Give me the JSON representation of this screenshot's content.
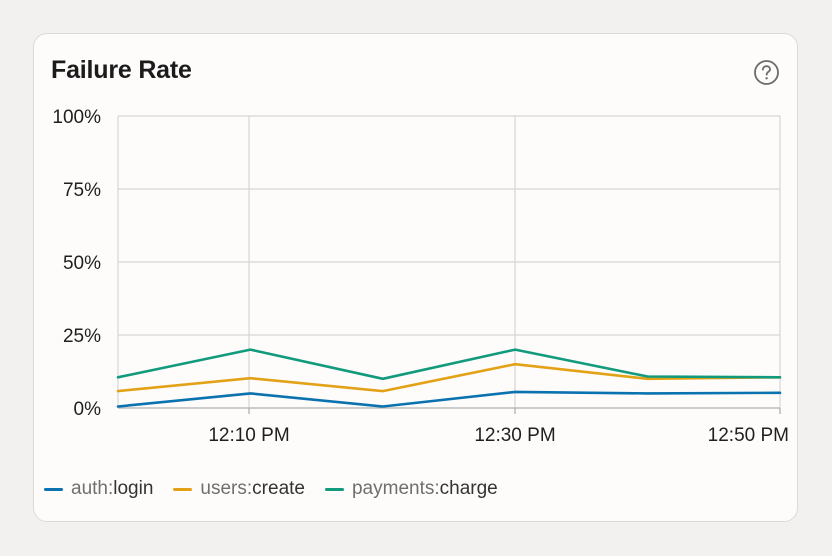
{
  "card": {
    "title": "Failure Rate",
    "help_icon": "question-circle-icon"
  },
  "chart_data": {
    "type": "line",
    "title": "Failure Rate",
    "xlabel": "",
    "ylabel": "",
    "x_tick_labels": [
      "12:10 PM",
      "12:30 PM",
      "12:50 PM"
    ],
    "y_tick_labels": [
      "0%",
      "25%",
      "50%",
      "75%",
      "100%"
    ],
    "ylim": [
      0,
      100
    ],
    "grid": true,
    "legend_position": "bottom",
    "series": [
      {
        "name": "auth:login",
        "namespace": "auth",
        "separator": ":",
        "action": "login",
        "color": "#0b72b0",
        "values": [
          0.5,
          5,
          0.5,
          5.5,
          5,
          5.2
        ]
      },
      {
        "name": "users:create",
        "namespace": "users",
        "separator": ":",
        "action": "create",
        "color": "#e3a116",
        "values": [
          5.8,
          10.2,
          5.8,
          15,
          10,
          10.5
        ]
      },
      {
        "name": "payments:charge",
        "namespace": "payments",
        "separator": ":",
        "action": "charge",
        "color": "#129a7d",
        "values": [
          10.5,
          20,
          10,
          20,
          10.8,
          10.5
        ]
      }
    ]
  }
}
